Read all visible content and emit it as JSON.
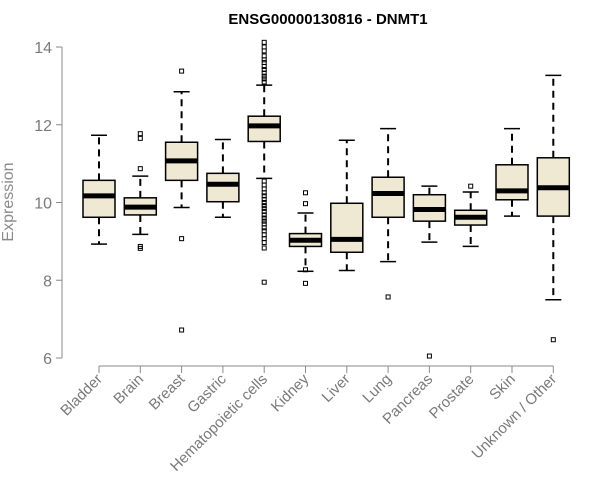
{
  "chart_data": {
    "type": "boxplot",
    "title": "ENSG00000130816 - DNMT1",
    "ylabel": "Expression",
    "xlabel": "",
    "ylim": [
      6,
      14
    ],
    "yticks": [
      6,
      8,
      10,
      12,
      14
    ],
    "grid": false,
    "box_fill": "#efe8d3",
    "categories": [
      "Bladder",
      "Brain",
      "Breast",
      "Gastric",
      "Hematopoietic cells",
      "Kidney",
      "Liver",
      "Lung",
      "Pancreas",
      "Prostate",
      "Skin",
      "Unknown / Other"
    ],
    "boxes": [
      {
        "q1": 9.62,
        "median": 10.17,
        "q3": 10.57,
        "whisker_low": 8.93,
        "whisker_high": 11.73,
        "outliers": []
      },
      {
        "q1": 9.68,
        "median": 9.88,
        "q3": 10.12,
        "whisker_low": 9.18,
        "whisker_high": 10.68,
        "outliers": [
          11.77,
          11.65,
          10.87,
          8.87,
          8.82
        ]
      },
      {
        "q1": 10.57,
        "median": 11.07,
        "q3": 11.55,
        "whisker_low": 9.87,
        "whisker_high": 12.85,
        "outliers": [
          13.38,
          9.07,
          6.72
        ]
      },
      {
        "q1": 10.02,
        "median": 10.47,
        "q3": 10.75,
        "whisker_low": 9.62,
        "whisker_high": 11.62,
        "outliers": []
      },
      {
        "q1": 11.57,
        "median": 11.97,
        "q3": 12.22,
        "whisker_low": 10.62,
        "whisker_high": 13.02,
        "outliers": [
          14.12,
          14.0,
          13.9,
          13.77,
          13.67,
          13.6,
          13.5,
          13.42,
          13.33,
          13.25,
          13.18,
          13.1,
          10.55,
          10.45,
          10.35,
          10.25,
          10.17,
          10.08,
          10.0,
          9.92,
          9.85,
          9.77,
          9.68,
          9.6,
          9.52,
          9.45,
          9.35,
          9.27,
          9.17,
          9.07,
          8.97,
          8.83,
          7.95
        ]
      },
      {
        "q1": 8.87,
        "median": 9.03,
        "q3": 9.2,
        "whisker_low": 8.23,
        "whisker_high": 9.73,
        "outliers": [
          10.25,
          9.97,
          8.27,
          7.92
        ]
      },
      {
        "q1": 8.72,
        "median": 9.05,
        "q3": 9.98,
        "whisker_low": 8.25,
        "whisker_high": 11.6,
        "outliers": []
      },
      {
        "q1": 9.62,
        "median": 10.23,
        "q3": 10.65,
        "whisker_low": 8.48,
        "whisker_high": 11.9,
        "outliers": [
          7.57
        ]
      },
      {
        "q1": 9.52,
        "median": 9.82,
        "q3": 10.2,
        "whisker_low": 8.98,
        "whisker_high": 10.42,
        "outliers": [
          6.05
        ]
      },
      {
        "q1": 9.42,
        "median": 9.62,
        "q3": 9.8,
        "whisker_low": 8.87,
        "whisker_high": 10.27,
        "outliers": [
          10.42
        ]
      },
      {
        "q1": 10.07,
        "median": 10.3,
        "q3": 10.97,
        "whisker_low": 9.65,
        "whisker_high": 11.9,
        "outliers": []
      },
      {
        "q1": 9.65,
        "median": 10.38,
        "q3": 11.15,
        "whisker_low": 7.5,
        "whisker_high": 13.27,
        "outliers": [
          6.47
        ]
      }
    ]
  }
}
